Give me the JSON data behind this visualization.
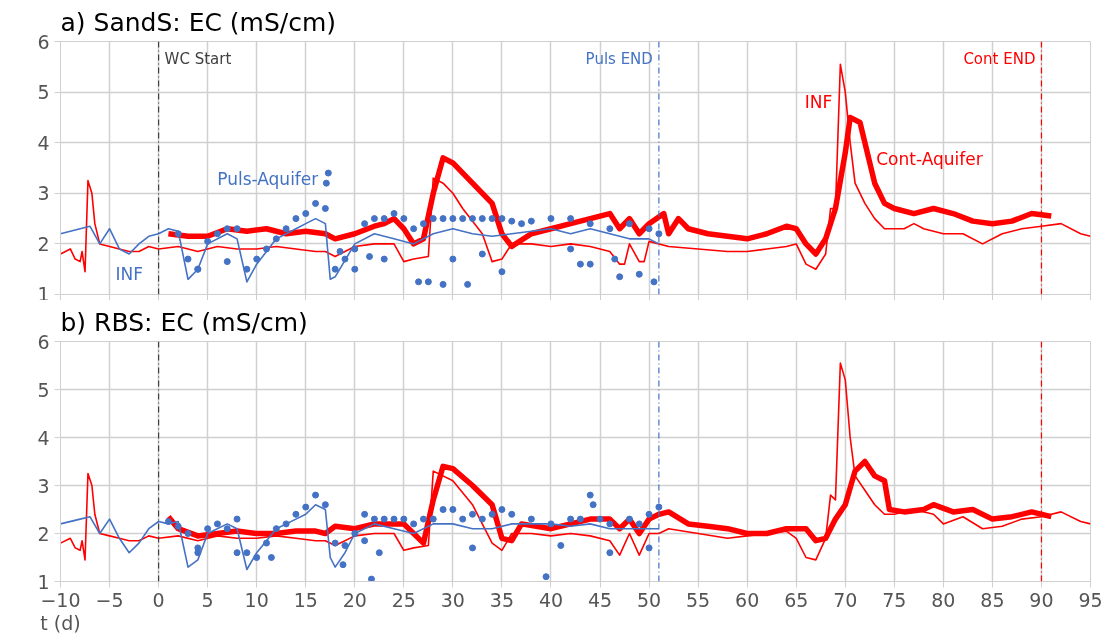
{
  "chart_data": [
    {
      "type": "line",
      "title": "a) SandS: EC (mS/cm)",
      "xlim": [
        -10,
        95
      ],
      "xticks": [
        -10,
        -5,
        0,
        5,
        10,
        15,
        20,
        25,
        30,
        35,
        40,
        45,
        50,
        55,
        60,
        65,
        70,
        75,
        80,
        85,
        90,
        95
      ],
      "ylim": [
        1,
        6
      ],
      "yticks": [
        1,
        2,
        3,
        4,
        5,
        6
      ],
      "grid": true,
      "tick_labels": "y",
      "ref_lines": [
        {
          "axis": "x",
          "value": 0,
          "label": "WC Start",
          "color": "#404040",
          "line_style": "dashed"
        },
        {
          "axis": "x",
          "value": 51,
          "label": "Puls END",
          "color": "#4472c4",
          "line_style": "dashed"
        },
        {
          "axis": "x",
          "value": 90,
          "label": "Cont END",
          "color": "#ff0000",
          "line_style": "dashed"
        }
      ],
      "series": [
        {
          "name": "INF",
          "color": "#ff0000",
          "x": [
            -10,
            -9,
            -8.5,
            -8,
            -7.8,
            -7.5,
            -7.2,
            -6.8,
            -6.5,
            -6,
            -5,
            -4,
            -3,
            -2,
            -1,
            0,
            2,
            4,
            6,
            8,
            10,
            12,
            14,
            16,
            17,
            18,
            20,
            22,
            24,
            25,
            26,
            27.5,
            28,
            29,
            30,
            31,
            33,
            34,
            35,
            36,
            38,
            40,
            42,
            44,
            46,
            47,
            47.5,
            48,
            49,
            49.5,
            50,
            52,
            55,
            58,
            60,
            62,
            64,
            65,
            66,
            67,
            68,
            68.5,
            69,
            69.5,
            70,
            70.5,
            71,
            72,
            73,
            74,
            75,
            76,
            77,
            78,
            80,
            82,
            84,
            86,
            88,
            90,
            92,
            94,
            95
          ],
          "values": [
            1.8,
            1.9,
            1.7,
            1.65,
            1.85,
            1.45,
            3.25,
            3.0,
            2.4,
            2.0,
            1.95,
            1.9,
            1.85,
            1.85,
            1.95,
            1.9,
            1.95,
            1.85,
            1.95,
            1.9,
            1.9,
            1.95,
            1.9,
            1.85,
            1.85,
            1.75,
            1.95,
            2.0,
            2.0,
            1.65,
            1.7,
            1.75,
            3.3,
            3.2,
            3.0,
            2.7,
            2.2,
            1.65,
            1.7,
            2.0,
            2.0,
            1.95,
            2.0,
            1.95,
            1.85,
            1.6,
            1.6,
            2.0,
            1.65,
            1.65,
            2.05,
            1.95,
            1.9,
            1.85,
            1.85,
            1.9,
            1.95,
            2.0,
            1.6,
            1.5,
            1.8,
            2.7,
            2.7,
            5.55,
            5.0,
            4.0,
            3.2,
            2.8,
            2.5,
            2.3,
            2.3,
            2.3,
            2.4,
            2.3,
            2.2,
            2.2,
            2.0,
            2.2,
            2.3,
            2.35,
            2.4,
            2.2,
            2.15
          ]
        },
        {
          "name": "Cont-Aquifer",
          "color": "#ff0000",
          "x": [
            1,
            3,
            5,
            7,
            9,
            11,
            13,
            15,
            17,
            18,
            20,
            22,
            23,
            24,
            25,
            26,
            27,
            28,
            29,
            30,
            32,
            34,
            35,
            36,
            38,
            40,
            42,
            44,
            46,
            47,
            48,
            49,
            50,
            51.5,
            52,
            53,
            54,
            56,
            58,
            60,
            62,
            64,
            65,
            66,
            67,
            68,
            69,
            70,
            70.5,
            71.5,
            72,
            73,
            74,
            75,
            77,
            79,
            81,
            83,
            85,
            87,
            89,
            91
          ],
          "values": [
            2.2,
            2.15,
            2.15,
            2.3,
            2.25,
            2.3,
            2.2,
            2.25,
            2.2,
            2.1,
            2.2,
            2.35,
            2.4,
            2.5,
            2.3,
            2.0,
            2.1,
            3.0,
            3.7,
            3.6,
            3.2,
            2.8,
            2.2,
            1.95,
            2.2,
            2.3,
            2.4,
            2.5,
            2.6,
            2.3,
            2.5,
            2.2,
            2.4,
            2.6,
            2.2,
            2.5,
            2.3,
            2.2,
            2.15,
            2.1,
            2.2,
            2.35,
            2.3,
            2.0,
            1.8,
            2.1,
            2.7,
            3.8,
            4.5,
            4.4,
            4.0,
            3.2,
            2.8,
            2.7,
            2.6,
            2.7,
            2.6,
            2.45,
            2.4,
            2.45,
            2.6,
            2.55
          ]
        },
        {
          "name": "INF",
          "color": "#4472c4",
          "x": [
            -10,
            -8,
            -7,
            -6,
            -5,
            -4,
            -3,
            -2,
            -1,
            0,
            1,
            2,
            3,
            4,
            5,
            7,
            8,
            9,
            10,
            12,
            14,
            15,
            16,
            17,
            17.5,
            18,
            20,
            22,
            24,
            26,
            28,
            30,
            32,
            34,
            36,
            38,
            40,
            42,
            44,
            46,
            48,
            50,
            51
          ],
          "values": [
            2.2,
            2.3,
            2.35,
            2.0,
            2.3,
            1.9,
            1.8,
            2.0,
            2.15,
            2.2,
            2.3,
            2.25,
            1.3,
            1.5,
            2.0,
            2.2,
            2.1,
            1.25,
            1.6,
            2.1,
            2.3,
            2.4,
            2.5,
            2.4,
            1.3,
            1.35,
            2.0,
            2.2,
            2.1,
            2.0,
            2.2,
            2.3,
            2.2,
            2.15,
            2.2,
            2.25,
            2.3,
            2.2,
            2.3,
            2.2,
            2.1,
            2.1,
            2.0
          ]
        },
        {
          "name": "Puls-Aquifer",
          "type": "scatter",
          "marker": "circle",
          "color": "#4472c4",
          "x": [
            2,
            3,
            4,
            5,
            6,
            7,
            8,
            9,
            10,
            11,
            12,
            13,
            14,
            15,
            16,
            17,
            17.1,
            17.3,
            18,
            19,
            20,
            21,
            22,
            23,
            24,
            25,
            26,
            27,
            28,
            29,
            30,
            31,
            32,
            33,
            34,
            35,
            36,
            37,
            38,
            40,
            42,
            44,
            46,
            48,
            50,
            51,
            4,
            7,
            18.5,
            20,
            21.5,
            23,
            26.5,
            27.5,
            29,
            30,
            31.5,
            33,
            35,
            42,
            43,
            44,
            46.5,
            47,
            49,
            50.5
          ],
          "values": [
            2.2,
            1.7,
            1.5,
            2.05,
            2.2,
            2.3,
            2.3,
            1.5,
            1.7,
            1.9,
            2.1,
            2.3,
            2.5,
            2.6,
            2.8,
            2.7,
            3.2,
            3.4,
            1.5,
            1.7,
            1.9,
            2.4,
            2.5,
            2.5,
            2.6,
            2.5,
            2.3,
            2.4,
            2.5,
            2.5,
            2.5,
            2.5,
            2.5,
            2.5,
            2.5,
            2.5,
            2.45,
            2.4,
            2.45,
            2.5,
            2.5,
            2.4,
            2.3,
            2.4,
            2.3,
            2.2,
            1.5,
            1.65,
            1.85,
            1.5,
            1.75,
            1.7,
            1.25,
            1.25,
            1.2,
            1.7,
            1.2,
            1.8,
            1.45,
            1.9,
            1.6,
            1.6,
            1.7,
            1.35,
            1.4,
            1.25
          ]
        }
      ]
    },
    {
      "type": "line",
      "title": "b) RBS: EC (mS/cm)",
      "xlabel": "t (d)",
      "xlim": [
        -10,
        95
      ],
      "xticks": [
        -10,
        -5,
        0,
        5,
        10,
        15,
        20,
        25,
        30,
        35,
        40,
        45,
        50,
        55,
        60,
        65,
        70,
        75,
        80,
        85,
        90,
        95
      ],
      "ylim": [
        1,
        6
      ],
      "yticks": [
        1,
        2,
        3,
        4,
        5,
        6
      ],
      "grid": true,
      "ref_lines": [
        {
          "axis": "x",
          "value": 0,
          "label": null,
          "color": "#404040",
          "line_style": "dashed"
        },
        {
          "axis": "x",
          "value": 51,
          "label": null,
          "color": "#4472c4",
          "line_style": "dashed"
        },
        {
          "axis": "x",
          "value": 90,
          "label": null,
          "color": "#ff0000",
          "line_style": "dashed"
        }
      ],
      "series": [
        {
          "color": "#ff0000",
          "x": [
            -10,
            -9,
            -8.5,
            -8,
            -7.8,
            -7.5,
            -7.2,
            -6.8,
            -6.5,
            -6,
            -5,
            -4,
            -3,
            -2,
            -1,
            0,
            2,
            4,
            6,
            8,
            10,
            12,
            14,
            16,
            17,
            18,
            20,
            22,
            24,
            25,
            26,
            27.5,
            28,
            30,
            32,
            34,
            35,
            36,
            38,
            40,
            42,
            44,
            46,
            47,
            48,
            49,
            50,
            51,
            52,
            55,
            58,
            60,
            62,
            64,
            65,
            66,
            67,
            68,
            68.5,
            69,
            69.5,
            70,
            70.5,
            71,
            72,
            73,
            74,
            75,
            77,
            79,
            80,
            82,
            84,
            86,
            88,
            90,
            92,
            94,
            95
          ],
          "values": [
            1.8,
            1.9,
            1.7,
            1.65,
            1.85,
            1.45,
            3.25,
            3.0,
            2.4,
            2.0,
            1.95,
            1.9,
            1.85,
            1.85,
            1.95,
            1.9,
            1.95,
            1.85,
            1.95,
            1.9,
            1.9,
            1.95,
            1.9,
            1.85,
            1.85,
            1.75,
            1.95,
            2.0,
            2.0,
            1.65,
            1.7,
            1.75,
            3.3,
            3.1,
            2.6,
            1.8,
            1.65,
            2.0,
            2.0,
            1.95,
            2.0,
            1.95,
            1.85,
            1.55,
            2.0,
            1.55,
            2.0,
            2.0,
            2.1,
            2.0,
            1.9,
            1.95,
            2.0,
            2.05,
            1.9,
            1.5,
            1.45,
            1.9,
            2.8,
            2.7,
            5.55,
            5.2,
            4.0,
            3.2,
            2.9,
            2.6,
            2.4,
            2.4,
            2.5,
            2.4,
            2.2,
            2.35,
            2.1,
            2.15,
            2.3,
            2.35,
            2.45,
            2.25,
            2.2
          ]
        },
        {
          "color": "#ff0000",
          "x": [
            1,
            2,
            4,
            6,
            8,
            10,
            12,
            14,
            16,
            17,
            18,
            20,
            22,
            24,
            25,
            26,
            27,
            28,
            29,
            30,
            32,
            34,
            35,
            36,
            37,
            40,
            42,
            44,
            46,
            47,
            48,
            49,
            50,
            51,
            52,
            54,
            56,
            58,
            60,
            62,
            64,
            66,
            67,
            68,
            69,
            70,
            71,
            72,
            73,
            74,
            74.5,
            76,
            78,
            79,
            81,
            83,
            85,
            87,
            89,
            91
          ],
          "values": [
            2.35,
            2.1,
            1.95,
            2.0,
            2.05,
            2.0,
            2.0,
            2.05,
            2.05,
            2.0,
            2.15,
            2.1,
            2.2,
            2.2,
            2.2,
            2.0,
            1.8,
            2.7,
            3.4,
            3.35,
            3.0,
            2.6,
            1.9,
            1.85,
            2.2,
            2.1,
            2.2,
            2.3,
            2.3,
            2.1,
            2.3,
            2.0,
            2.3,
            2.4,
            2.45,
            2.2,
            2.15,
            2.1,
            2.0,
            2.0,
            2.1,
            2.1,
            1.85,
            1.9,
            2.3,
            2.6,
            3.3,
            3.5,
            3.2,
            3.1,
            2.5,
            2.45,
            2.5,
            2.6,
            2.45,
            2.5,
            2.3,
            2.35,
            2.45,
            2.35
          ]
        },
        {
          "color": "#4472c4",
          "x": [
            -10,
            -8,
            -7,
            -6,
            -5,
            -4,
            -3,
            -2,
            -1,
            0,
            1,
            2,
            3,
            4,
            5,
            7,
            8,
            9,
            10,
            12,
            14,
            15,
            16,
            17,
            17.5,
            18,
            19,
            20,
            22,
            24,
            26,
            28,
            30,
            32,
            34,
            36,
            38,
            40,
            42,
            44,
            46,
            48,
            50,
            51
          ],
          "values": [
            2.2,
            2.3,
            2.35,
            2.0,
            2.3,
            1.9,
            1.6,
            1.8,
            2.1,
            2.25,
            2.2,
            2.25,
            1.3,
            1.45,
            2.0,
            2.2,
            2.1,
            1.25,
            1.6,
            2.1,
            2.3,
            2.4,
            2.6,
            2.5,
            1.5,
            1.3,
            1.6,
            2.0,
            2.2,
            2.1,
            2.0,
            2.2,
            2.2,
            2.1,
            2.1,
            2.2,
            2.2,
            2.2,
            2.15,
            2.2,
            2.1,
            2.1,
            2.1,
            2.1
          ]
        },
        {
          "type": "scatter",
          "marker": "circle",
          "color": "#4472c4",
          "x": [
            1,
            2,
            3,
            4,
            5,
            6,
            7,
            8,
            9,
            10,
            11,
            12,
            13,
            14,
            15,
            16,
            17,
            18,
            19,
            20,
            21,
            22,
            23,
            24,
            25,
            26,
            27,
            28,
            29,
            30,
            31,
            32,
            33,
            34,
            35,
            36,
            38,
            40,
            42,
            43,
            44,
            44.3,
            45,
            46,
            48,
            49,
            50,
            51,
            4,
            8,
            11.5,
            18.8,
            21,
            21.7,
            22.5,
            32,
            39.5,
            41,
            46,
            50
          ],
          "values": [
            2.25,
            2.15,
            2.0,
            1.7,
            2.1,
            2.2,
            2.1,
            2.3,
            1.6,
            1.5,
            1.8,
            2.1,
            2.2,
            2.4,
            2.55,
            2.8,
            2.6,
            1.8,
            1.75,
            2.0,
            2.4,
            2.3,
            2.3,
            2.3,
            2.3,
            2.2,
            2.3,
            2.3,
            2.5,
            2.5,
            2.3,
            2.4,
            2.3,
            2.4,
            2.5,
            2.4,
            2.3,
            2.2,
            2.3,
            2.3,
            2.8,
            2.6,
            2.3,
            2.2,
            2.3,
            2.2,
            2.4,
            2.55,
            1.6,
            1.6,
            1.5,
            1.35,
            1.85,
            1.05,
            1.6,
            1.7,
            1.1,
            1.75,
            1.6,
            1.7
          ]
        }
      ]
    }
  ]
}
